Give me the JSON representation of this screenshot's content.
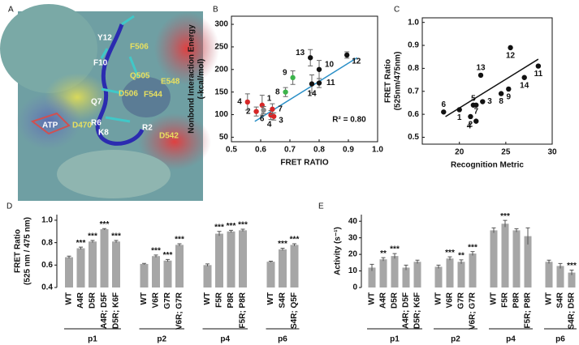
{
  "panel_letters": [
    "A",
    "B",
    "C",
    "D",
    "E"
  ],
  "panel_a": {
    "labels": [
      "Y12",
      "F506",
      "F10",
      "Q505",
      "E548",
      "D506",
      "F544",
      "Q7",
      "ATP",
      "D470",
      "R6",
      "K8",
      "R2",
      "D542"
    ]
  },
  "chart_data": [
    {
      "type": "scatter",
      "xlabel": "FRET RATIO",
      "ylabel": [
        "Nonbond Interaction Energy",
        "(-kcal/mol)"
      ],
      "xlim": [
        0.5,
        1.0
      ],
      "ylim": [
        40,
        318
      ],
      "xticks": [
        0.5,
        0.6,
        0.7,
        0.8,
        0.9,
        {
          "value": 1,
          "label": "1.0"
        }
      ],
      "yticks": [
        50,
        100,
        150,
        200,
        250,
        300
      ],
      "point_labels": [
        "13",
        "10",
        "12",
        "11",
        "14",
        "9",
        "8",
        "1",
        "2",
        "4",
        "6",
        "4",
        "7",
        "3"
      ],
      "x": [
        0.77,
        0.8,
        0.895,
        0.8,
        0.775,
        0.71,
        0.685,
        0.605,
        0.585,
        0.555,
        0.61,
        0.635,
        0.64,
        0.645
      ],
      "values": [
        226,
        200,
        232,
        170,
        168,
        182,
        150,
        121,
        107,
        128,
        110,
        99,
        112,
        96
      ],
      "errors": [
        18,
        20,
        7,
        10,
        20,
        15,
        10,
        22,
        10,
        18,
        8,
        10,
        12,
        8
      ],
      "colors": [
        "#111111",
        "#111111",
        "#111111",
        "#111111",
        "#111111",
        "#3cb44b",
        "#3cb44b",
        "#d62728",
        "#d62728",
        "#d62728",
        "#888888",
        "#d62728",
        "#d62728",
        "#d62728"
      ],
      "fit_line": {
        "x": [
          0.58,
          0.93
        ],
        "values": [
          85,
          226
        ],
        "color": "#2a8fc7"
      },
      "annotation": "R² = 0.80"
    },
    {
      "type": "scatter",
      "xlabel": "Recognition Metric",
      "ylabel": [
        "FRET Ratio",
        "(525nm/475nm)"
      ],
      "xlim": [
        16,
        30
      ],
      "ylim": [
        0.47,
        1.02
      ],
      "xticks": [
        20,
        25,
        30
      ],
      "yticks": [
        0.5,
        0.6,
        0.7,
        0.8,
        0.9,
        {
          "value": 1,
          "label": "1.0"
        }
      ],
      "point_labels": [
        "6",
        "1",
        "2",
        "5",
        "7",
        "4",
        "13",
        "3",
        "8",
        "9",
        "12",
        "14",
        "11"
      ],
      "x": [
        18.3,
        20,
        21.2,
        21.5,
        21.8,
        21.8,
        22.3,
        22.5,
        24.5,
        25.3,
        25.5,
        27,
        28.5
      ],
      "values": [
        0.61,
        0.62,
        0.59,
        0.64,
        0.64,
        0.57,
        0.77,
        0.655,
        0.69,
        0.71,
        0.89,
        0.76,
        0.81
      ],
      "colors": [
        "#111111",
        "#111111",
        "#111111",
        "#111111",
        "#111111",
        "#111111",
        "#111111",
        "#111111",
        "#111111",
        "#111111",
        "#111111",
        "#111111",
        "#111111"
      ],
      "fit_line": {
        "x": [
          18.5,
          28.5
        ],
        "values": [
          0.59,
          0.84
        ],
        "color": "#111111"
      }
    },
    {
      "type": "bar",
      "ylabel": [
        "FRET Ratio",
        "(525 nm / 475 nm)"
      ],
      "color": "#a6a6a6",
      "ylim": [
        0.4,
        1.05
      ],
      "yticks": [
        0.4,
        0.6,
        0.8,
        {
          "value": 1,
          "label": "1.0"
        }
      ],
      "groups": [
        {
          "name": "p1",
          "categories": [
            "WT",
            "A4R",
            "D5R",
            "A4R; D5F",
            "D5R; K6F"
          ],
          "values": [
            0.67,
            0.75,
            0.81,
            0.92,
            0.81
          ],
          "errors": [
            0.01,
            0.01,
            0.01,
            0.005,
            0.01
          ],
          "significance": [
            null,
            "***",
            "***",
            "***",
            "***"
          ]
        },
        {
          "name": "p2",
          "categories": [
            "WT",
            "V6R",
            "G7R",
            "V6R; G7R"
          ],
          "values": [
            0.61,
            0.68,
            0.64,
            0.78
          ],
          "errors": [
            0.005,
            0.01,
            0.01,
            0.01
          ],
          "significance": [
            null,
            "***",
            "***",
            "***"
          ]
        },
        {
          "name": "p4",
          "categories": [
            "WT",
            "F5R",
            "P8R",
            "F5R; P8R"
          ],
          "values": [
            0.6,
            0.88,
            0.9,
            0.91
          ],
          "errors": [
            0.01,
            0.02,
            0.01,
            0.01
          ],
          "significance": [
            null,
            "***",
            "***",
            "***"
          ]
        },
        {
          "name": "p6",
          "categories": [
            "WT",
            "S4R",
            "S4R; Q5F"
          ],
          "values": [
            0.63,
            0.74,
            0.78
          ],
          "errors": [
            0.005,
            0.01,
            0.01
          ],
          "significance": [
            null,
            "***",
            "***"
          ]
        }
      ]
    },
    {
      "type": "bar",
      "ylabel": "Activity (s⁻¹)",
      "color": "#a6a6a6",
      "ylim": [
        0,
        44
      ],
      "yticks": [
        0,
        10,
        20,
        30,
        40
      ],
      "groups": [
        {
          "name": "p1",
          "categories": [
            "WT",
            "A4R",
            "D5R",
            "A4R; D5F",
            "D5R; K6F"
          ],
          "values": [
            12,
            17,
            19,
            12,
            15.5
          ],
          "errors": [
            2,
            1,
            1.5,
            1.5,
            1
          ],
          "significance": [
            null,
            "**",
            "***",
            null,
            null
          ]
        },
        {
          "name": "p2",
          "categories": [
            "WT",
            "V6R",
            "G7R",
            "V6R; G7R"
          ],
          "values": [
            12.5,
            17.5,
            15.5,
            20.5
          ],
          "errors": [
            1,
            1,
            1.2,
            1.2
          ],
          "significance": [
            null,
            "***",
            "**",
            "***"
          ]
        },
        {
          "name": "p4",
          "categories": [
            "WT",
            "F5R",
            "P8R",
            "F5R; P8R"
          ],
          "values": [
            34.5,
            38.5,
            34.5,
            31
          ],
          "errors": [
            1.5,
            2,
            1,
            5
          ],
          "significance": [
            null,
            "***",
            null,
            null
          ]
        },
        {
          "name": "p6",
          "categories": [
            "WT",
            "S4R",
            "S4R; D5R"
          ],
          "values": [
            15.5,
            13,
            9
          ],
          "errors": [
            1,
            1.5,
            1.5
          ],
          "significance": [
            null,
            null,
            "***"
          ]
        }
      ]
    }
  ]
}
